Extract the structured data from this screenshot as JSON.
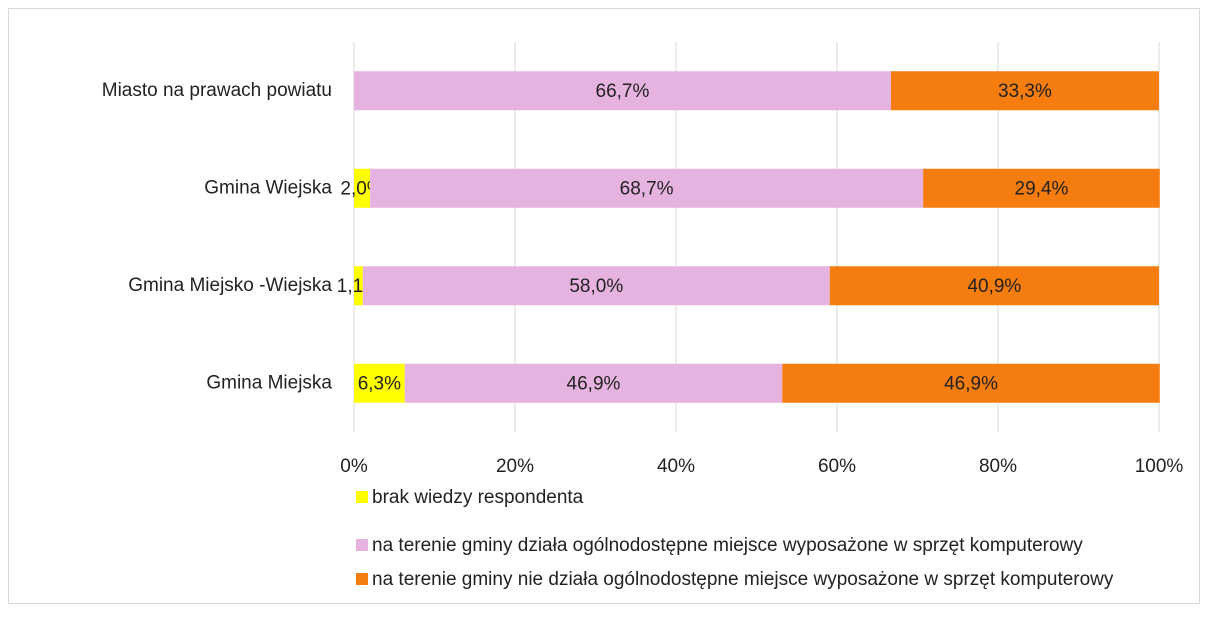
{
  "chart_data": {
    "type": "stacked_bar_horizontal",
    "categories": [
      "Miasto na prawach powiatu",
      "Gmina Wiejska",
      "Gmina Miejsko -Wiejska",
      "Gmina Miejska"
    ],
    "series": [
      {
        "name": "brak wiedzy respondenta",
        "color": "#ffff00",
        "values": [
          null,
          2.0,
          1.1,
          6.3
        ],
        "value_labels": [
          null,
          "2,0%",
          "1,1%",
          "6,3%"
        ]
      },
      {
        "name": "na terenie gminy działa ogólnodostępne miejsce wyposażone w sprzęt komputerowy",
        "color": "#e6b3e0",
        "values": [
          66.7,
          68.7,
          58.0,
          46.9
        ],
        "value_labels": [
          "66,7%",
          "68,7%",
          "58,0%",
          "46,9%"
        ]
      },
      {
        "name": "na terenie gminy nie działa ogólnodostępne miejsce wyposażone w sprzęt komputerowy",
        "color": "#f57c0f",
        "values": [
          33.3,
          29.4,
          40.9,
          46.9
        ],
        "value_labels": [
          "33,3%",
          "29,4%",
          "40,9%",
          "46,9%"
        ]
      }
    ],
    "xlim": [
      0,
      100
    ],
    "xticks": [
      {
        "value": 0,
        "label": "0%"
      },
      {
        "value": 20,
        "label": "20%"
      },
      {
        "value": 40,
        "label": "40%"
      },
      {
        "value": 60,
        "label": "60%"
      },
      {
        "value": 80,
        "label": "80%"
      },
      {
        "value": 100,
        "label": "100%"
      }
    ],
    "grid": true,
    "legend": "bottom"
  }
}
